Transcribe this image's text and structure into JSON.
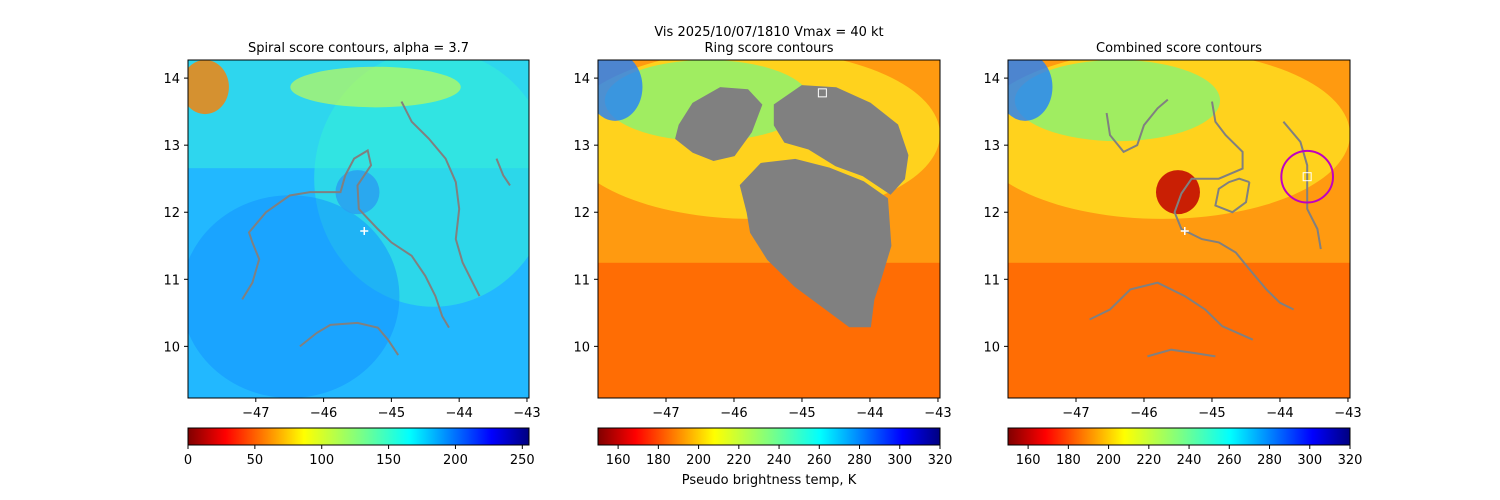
{
  "suptitle_line1": "Vis  2025/10/07/1810    Vmax = 40 kt",
  "chart_data": [
    {
      "type": "heatmap",
      "title": "Spiral score contours, alpha =  3.7",
      "xlim": [
        -48.0,
        -42.97
      ],
      "ylim": [
        9.23,
        14.27
      ],
      "xticks": [
        -47,
        -46,
        -45,
        -44,
        -43
      ],
      "yticks": [
        10,
        11,
        12,
        13,
        14
      ],
      "colormap": "jet_r",
      "colorbar": {
        "ticks": [
          0,
          50,
          100,
          150,
          200,
          250
        ],
        "range": [
          0,
          255
        ],
        "label": ""
      },
      "field_background": "blue",
      "eye": {
        "lon": -45.5,
        "lat": 12.3
      },
      "markers": [
        {
          "kind": "plus",
          "lon": -45.4,
          "lat": 11.72,
          "color": "#ffffff"
        }
      ],
      "contour_color": "#808080",
      "contours": [
        [
          [
            -47.2,
            10.7
          ],
          [
            -47.05,
            10.95
          ],
          [
            -46.95,
            11.3
          ],
          [
            -47.05,
            11.55
          ],
          [
            -47.1,
            11.7
          ],
          [
            -46.85,
            12.0
          ],
          [
            -46.5,
            12.25
          ],
          [
            -46.2,
            12.3
          ],
          [
            -45.95,
            12.3
          ],
          [
            -45.75,
            12.3
          ],
          [
            -45.68,
            12.55
          ],
          [
            -45.55,
            12.8
          ],
          [
            -45.35,
            12.92
          ],
          [
            -45.3,
            12.7
          ],
          [
            -45.5,
            12.4
          ],
          [
            -45.48,
            12.05
          ],
          [
            -45.2,
            11.75
          ],
          [
            -45.0,
            11.55
          ],
          [
            -44.7,
            11.35
          ],
          [
            -44.5,
            11.05
          ],
          [
            -44.35,
            10.75
          ],
          [
            -44.25,
            10.45
          ],
          [
            -44.15,
            10.28
          ]
        ],
        [
          [
            -44.85,
            13.65
          ],
          [
            -44.7,
            13.35
          ],
          [
            -44.45,
            13.1
          ],
          [
            -44.2,
            12.8
          ],
          [
            -44.05,
            12.45
          ],
          [
            -44.0,
            12.05
          ],
          [
            -44.05,
            11.6
          ],
          [
            -43.95,
            11.25
          ],
          [
            -43.8,
            10.95
          ],
          [
            -43.7,
            10.75
          ]
        ],
        [
          [
            -43.45,
            12.8
          ],
          [
            -43.35,
            12.55
          ],
          [
            -43.25,
            12.4
          ]
        ],
        [
          [
            -46.35,
            10.0
          ],
          [
            -46.1,
            10.2
          ],
          [
            -45.9,
            10.32
          ],
          [
            -45.5,
            10.35
          ],
          [
            -45.2,
            10.28
          ],
          [
            -45.05,
            10.1
          ],
          [
            -44.9,
            9.87
          ]
        ]
      ]
    },
    {
      "type": "heatmap",
      "title": "Ring score contours",
      "xlim": [
        -48.0,
        -42.97
      ],
      "ylim": [
        9.23,
        14.27
      ],
      "xticks": [
        -47,
        -46,
        -45,
        -44,
        -43
      ],
      "yticks": [
        10,
        11,
        12,
        13,
        14
      ],
      "colormap": "jet_r",
      "colorbar": {
        "ticks": [
          160,
          180,
          200,
          220,
          240,
          260,
          280,
          300,
          320
        ],
        "range": [
          150,
          320
        ],
        "label": "Pseudo brightness temp, K"
      },
      "field_background": "orange",
      "eye": {
        "lon": -45.5,
        "lat": 12.3
      },
      "markers": [
        {
          "kind": "square",
          "lon": -44.7,
          "lat": 13.78,
          "color": "#ffffff"
        }
      ],
      "contour_color": "#808080",
      "contour_regions": [
        [
          [
            -46.8,
            13.3
          ],
          [
            -46.6,
            13.62
          ],
          [
            -46.2,
            13.85
          ],
          [
            -45.8,
            13.82
          ],
          [
            -45.6,
            13.6
          ],
          [
            -45.75,
            13.2
          ],
          [
            -46.0,
            12.85
          ],
          [
            -46.3,
            12.78
          ],
          [
            -46.6,
            12.9
          ],
          [
            -46.85,
            13.1
          ]
        ],
        [
          [
            -45.4,
            13.6
          ],
          [
            -45.0,
            13.88
          ],
          [
            -44.5,
            13.85
          ],
          [
            -44.0,
            13.62
          ],
          [
            -43.6,
            13.3
          ],
          [
            -43.45,
            12.85
          ],
          [
            -43.5,
            12.5
          ],
          [
            -43.7,
            12.28
          ],
          [
            -44.1,
            12.55
          ],
          [
            -44.5,
            12.7
          ],
          [
            -44.9,
            12.95
          ],
          [
            -45.25,
            13.05
          ],
          [
            -45.4,
            13.3
          ]
        ],
        [
          [
            -45.9,
            12.4
          ],
          [
            -45.6,
            12.72
          ],
          [
            -45.1,
            12.78
          ],
          [
            -44.6,
            12.65
          ],
          [
            -44.1,
            12.45
          ],
          [
            -43.75,
            12.2
          ],
          [
            -43.7,
            11.5
          ],
          [
            -43.85,
            11.0
          ],
          [
            -43.95,
            10.7
          ],
          [
            -44.0,
            10.3
          ],
          [
            -44.3,
            10.3
          ],
          [
            -44.7,
            10.6
          ],
          [
            -45.1,
            10.9
          ],
          [
            -45.5,
            11.3
          ],
          [
            -45.75,
            11.7
          ],
          [
            -45.8,
            12.0
          ]
        ]
      ]
    },
    {
      "type": "heatmap",
      "title": "Combined score contours",
      "xlim": [
        -48.0,
        -42.97
      ],
      "ylim": [
        9.23,
        14.27
      ],
      "xticks": [
        -47,
        -46,
        -45,
        -44,
        -43
      ],
      "yticks": [
        10,
        11,
        12,
        13,
        14
      ],
      "colormap": "jet_r",
      "colorbar": {
        "ticks": [
          160,
          180,
          200,
          220,
          240,
          260,
          280,
          300,
          320
        ],
        "range": [
          150,
          320
        ],
        "label": ""
      },
      "field_background": "orange",
      "eye": {
        "lon": -45.5,
        "lat": 12.3
      },
      "markers": [
        {
          "kind": "plus",
          "lon": -45.4,
          "lat": 11.72,
          "color": "#ffffff"
        },
        {
          "kind": "square",
          "lon": -43.6,
          "lat": 12.53,
          "color": "#ffffff"
        }
      ],
      "circle": {
        "lon": -43.6,
        "lat": 12.53,
        "radius_deg": 0.38,
        "color": "#c000c0"
      },
      "contour_color": "#808080",
      "contours": [
        [
          [
            -46.55,
            13.48
          ],
          [
            -46.5,
            13.15
          ],
          [
            -46.3,
            12.9
          ],
          [
            -46.1,
            13.0
          ],
          [
            -46.0,
            13.3
          ],
          [
            -45.8,
            13.55
          ],
          [
            -45.65,
            13.68
          ]
        ],
        [
          [
            -45.0,
            13.65
          ],
          [
            -44.95,
            13.35
          ],
          [
            -44.8,
            13.15
          ],
          [
            -44.55,
            12.9
          ],
          [
            -44.55,
            12.65
          ],
          [
            -44.9,
            12.5
          ],
          [
            -45.3,
            12.5
          ],
          [
            -45.45,
            12.28
          ],
          [
            -45.55,
            12.0
          ],
          [
            -45.45,
            11.75
          ],
          [
            -45.15,
            11.6
          ],
          [
            -44.9,
            11.55
          ],
          [
            -44.65,
            11.4
          ],
          [
            -44.45,
            11.15
          ],
          [
            -44.2,
            10.85
          ],
          [
            -44.0,
            10.65
          ],
          [
            -43.8,
            10.55
          ]
        ],
        [
          [
            -44.45,
            12.45
          ],
          [
            -44.5,
            12.15
          ],
          [
            -44.7,
            12.0
          ],
          [
            -44.95,
            12.1
          ],
          [
            -44.9,
            12.35
          ],
          [
            -44.75,
            12.45
          ],
          [
            -44.6,
            12.5
          ],
          [
            -44.45,
            12.45
          ]
        ],
        [
          [
            -43.95,
            13.35
          ],
          [
            -43.7,
            13.05
          ],
          [
            -43.6,
            12.7
          ],
          [
            -43.6,
            12.35
          ],
          [
            -43.6,
            12.05
          ],
          [
            -43.45,
            11.75
          ],
          [
            -43.4,
            11.45
          ]
        ],
        [
          [
            -46.8,
            10.4
          ],
          [
            -46.5,
            10.55
          ],
          [
            -46.2,
            10.85
          ],
          [
            -45.8,
            10.95
          ],
          [
            -45.4,
            10.75
          ],
          [
            -45.1,
            10.55
          ],
          [
            -44.85,
            10.3
          ],
          [
            -44.4,
            10.1
          ]
        ],
        [
          [
            -45.95,
            9.85
          ],
          [
            -45.6,
            9.95
          ],
          [
            -45.25,
            9.9
          ],
          [
            -44.95,
            9.85
          ]
        ]
      ]
    }
  ]
}
